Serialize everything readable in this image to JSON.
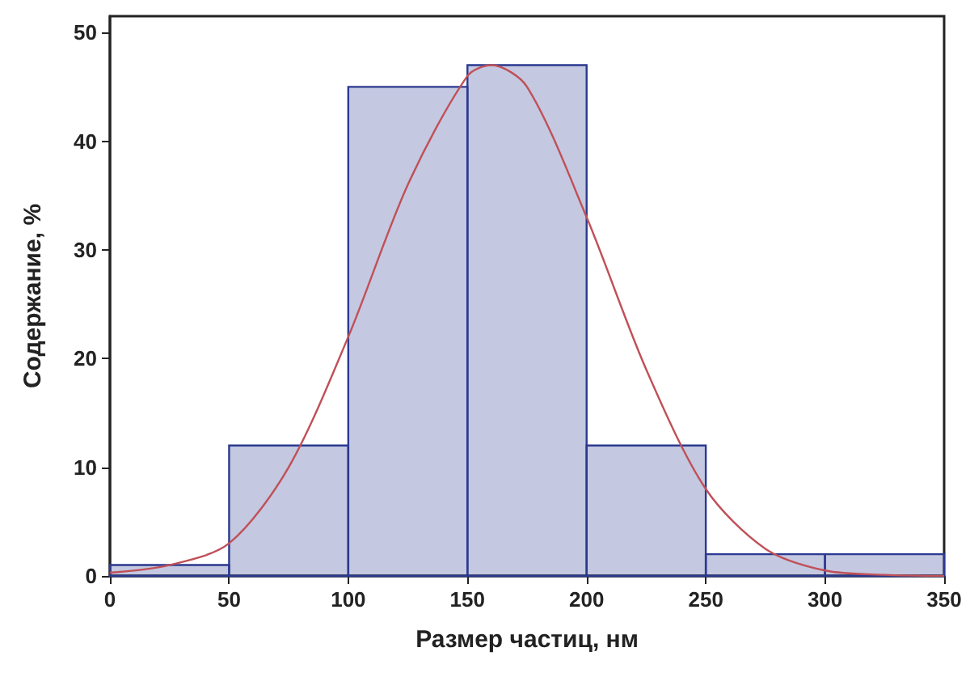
{
  "chart_data": {
    "type": "histogram",
    "xlabel": "Размер частиц, нм",
    "ylabel": "Содержание, %",
    "bins": [
      0,
      50,
      100,
      150,
      200,
      250,
      300,
      350
    ],
    "values": [
      1,
      12,
      45,
      47,
      12,
      2,
      2
    ],
    "color": "#2b3990",
    "series": [
      {
        "type": "line",
        "color": "#c05058",
        "marker": "none",
        "x": [
          0,
          25,
          50,
          75,
          100,
          125,
          150,
          160,
          175,
          200,
          225,
          250,
          275,
          300,
          325,
          350
        ],
        "values": [
          0.3,
          1,
          3,
          10,
          22,
          36,
          46,
          47,
          45,
          33,
          19,
          8,
          2.5,
          0.5,
          0.1,
          0
        ]
      }
    ],
    "xlim": [
      0,
      350
    ],
    "xticks": [
      0,
      50,
      100,
      150,
      200,
      250,
      300,
      350
    ],
    "ylim": [
      0,
      51.5
    ],
    "yticks": [
      0,
      10,
      20,
      30,
      40,
      50
    ],
    "grid": false
  }
}
